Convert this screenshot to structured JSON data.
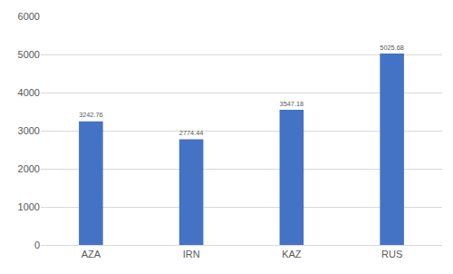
{
  "chart_data": {
    "type": "bar",
    "categories": [
      "AZA",
      "IRN",
      "KAZ",
      "RUS"
    ],
    "values": [
      3242.76,
      2774.44,
      3547.18,
      5025.68
    ],
    "color": "#4472c4",
    "ylim": [
      0,
      6000
    ],
    "yticks": [
      0,
      1000,
      2000,
      3000,
      4000,
      5000,
      6000
    ],
    "grid": true,
    "data_labels": true
  }
}
